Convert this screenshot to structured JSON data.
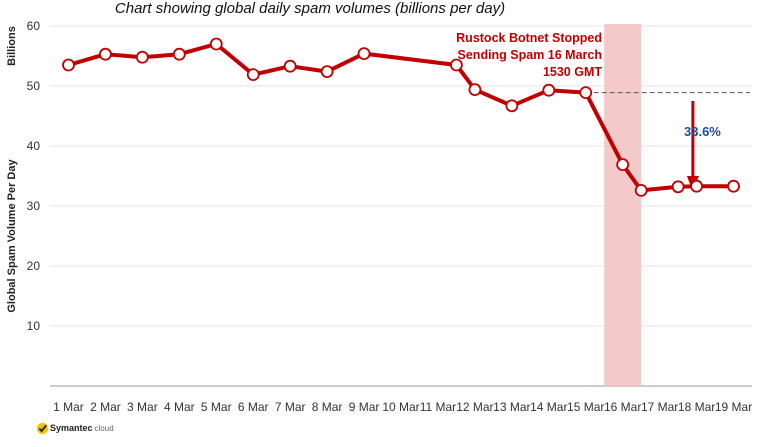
{
  "chart_data": {
    "type": "line",
    "title": "Chart showing global daily spam volumes (billions per day)",
    "ylabel": "Global Spam Volume Per Day",
    "yunit_label": "Billions",
    "xlabel": "",
    "ylim": [
      0,
      60
    ],
    "yticks": [
      "",
      "10",
      "20",
      "30",
      "40",
      "50",
      "60"
    ],
    "categories": [
      "1 Mar",
      "2 Mar",
      "3 Mar",
      "4 Mar",
      "5 Mar",
      "6 Mar",
      "7 Mar",
      "8 Mar",
      "9 Mar",
      "10 Mar",
      "11 Mar",
      "12 Mar",
      "13 Mar",
      "14 Mar",
      "15 Mar",
      "16 Mar",
      "17 Mar",
      "18 Mar",
      "19 Mar"
    ],
    "series": [
      {
        "x": [
          1.0,
          2.0,
          3.0,
          4.0,
          5.0,
          6.0,
          7.0,
          8.0,
          9.0,
          11.5,
          12.0,
          13.0,
          14.0,
          15.0,
          16.0,
          16.5,
          17.5,
          18.0,
          19.0
        ],
        "values": [
          53.5,
          55.3,
          54.8,
          55.3,
          57.0,
          51.9,
          53.3,
          52.4,
          55.4,
          53.5,
          49.4,
          46.7,
          49.3,
          48.9,
          36.9,
          32.6,
          33.2,
          33.3,
          33.3
        ],
        "color": "#c00000"
      }
    ],
    "baseline_value": 48.9,
    "highlight_band": {
      "from": 15.5,
      "to": 16.5,
      "color": "#f2c0c0"
    },
    "annotation": "Rustock Botnet Stopped\nSending Spam  16 March\n1530 GMT",
    "drop_label": "33.6%",
    "grid": true,
    "legend": "none"
  },
  "brand": {
    "name": "Symantec",
    "sub": "cloud"
  }
}
